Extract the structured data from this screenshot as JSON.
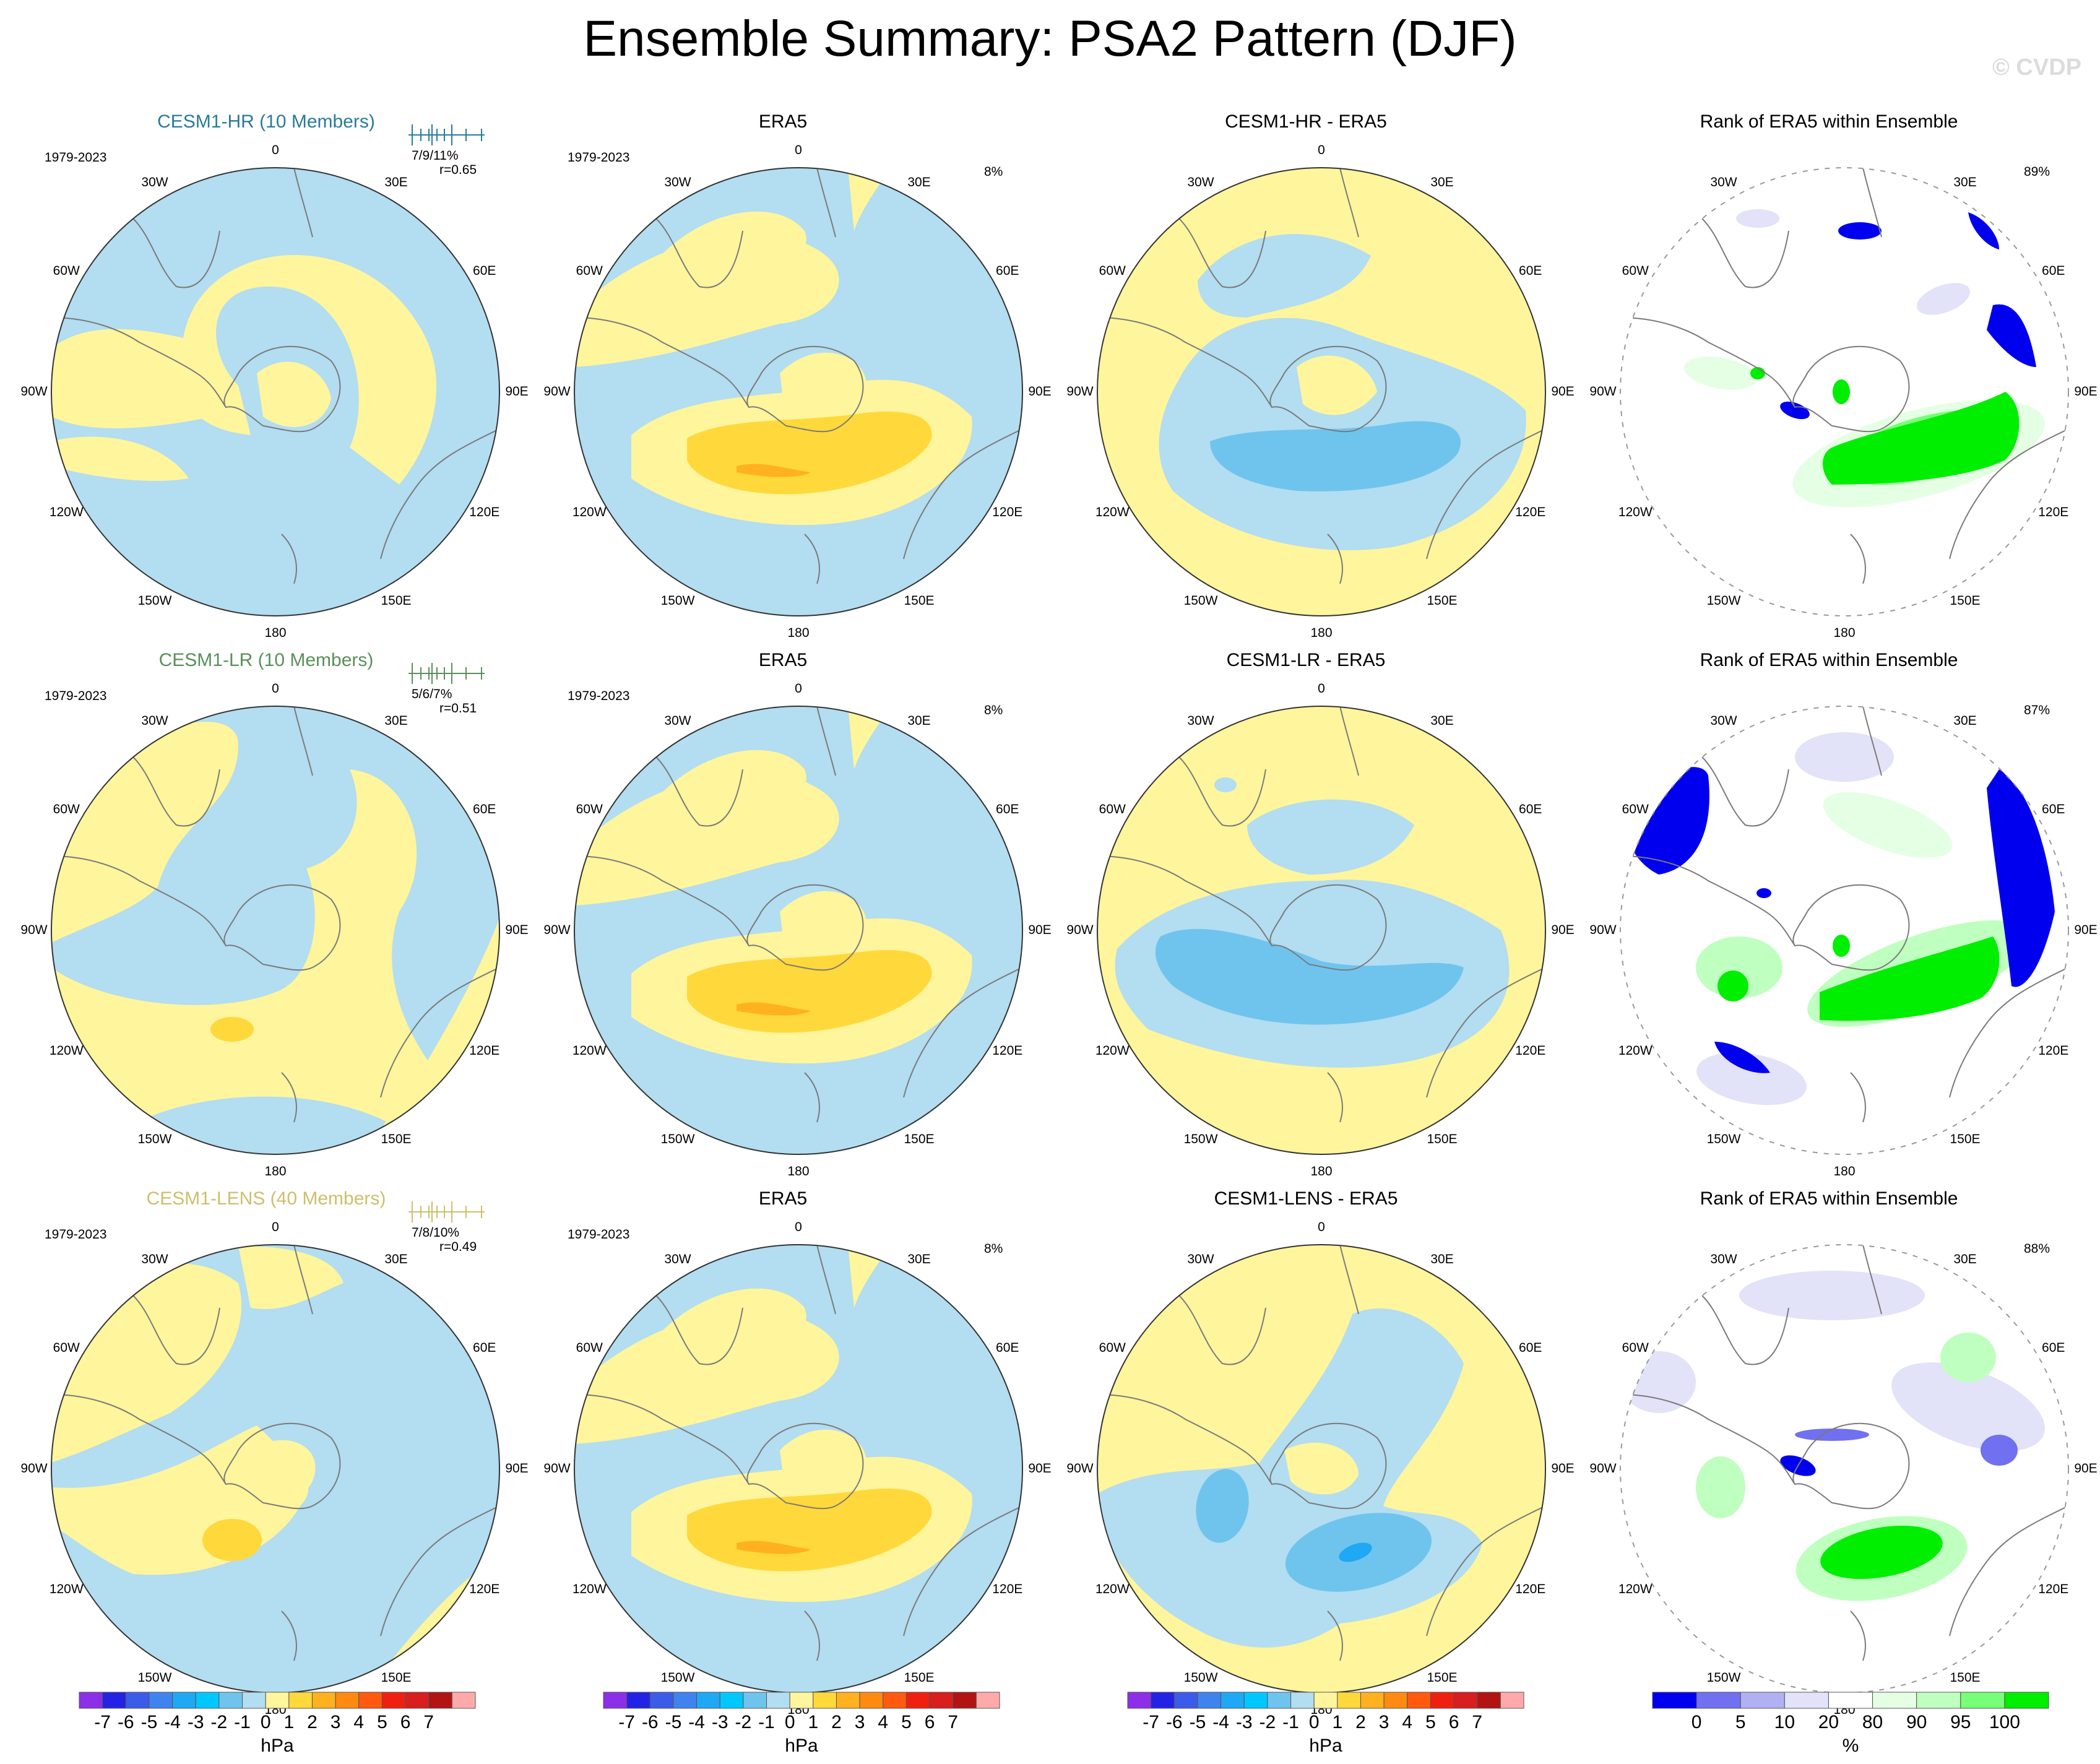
{
  "figure": {
    "title": "Ensemble Summary: PSA2 Pattern (DJF)",
    "watermark": "© CVDP"
  },
  "colors": {
    "title_rows": [
      "#2a7b9b",
      "#5a8f5a",
      "#cdbf6c"
    ],
    "hpa_scale": [
      "#8d2ee8",
      "#2323e6",
      "#3a5ce8",
      "#3f83ee",
      "#1fa8f4",
      "#00c8ff",
      "#6fc4ee",
      "#b3ddf0",
      "#fff59c",
      "#ffd83b",
      "#ffb11f",
      "#ff8a12",
      "#ff5a10",
      "#f02010",
      "#d81e1e",
      "#b21414",
      "#ffaaaa"
    ],
    "rank_scale": [
      "#0000ee",
      "#7070f0",
      "#b0b0f2",
      "#e2e2f8",
      "#ffffff",
      "#e5ffe5",
      "#bfffbf",
      "#77ff77",
      "#00ee00"
    ]
  },
  "chart_data": [
    {
      "type": "heatmap",
      "projection": "south-polar-stereographic",
      "title": "CESM1-HR (10 Members)",
      "title_style": "row",
      "period": "1979-2023",
      "stats": "7/9/11%",
      "corr": "r=0.65",
      "units": "hPa",
      "lon_labels": [
        "0",
        "30E",
        "60E",
        "90E",
        "120E",
        "150E",
        "180",
        "150W",
        "120W",
        "90W",
        "60W",
        "30W"
      ]
    },
    {
      "type": "heatmap",
      "projection": "south-polar-stereographic",
      "title": "ERA5",
      "period": "1979-2023",
      "pct": "8%",
      "units": "hPa",
      "lon_labels": [
        "0",
        "30E",
        "60E",
        "90E",
        "120E",
        "150E",
        "180",
        "150W",
        "120W",
        "90W",
        "60W",
        "30W"
      ]
    },
    {
      "type": "heatmap",
      "projection": "south-polar-stereographic",
      "title": "CESM1-HR - ERA5",
      "units": "hPa",
      "lon_labels": [
        "0",
        "30E",
        "60E",
        "90E",
        "120E",
        "150E",
        "180",
        "150W",
        "120W",
        "90W",
        "60W",
        "30W"
      ]
    },
    {
      "type": "heatmap",
      "projection": "south-polar-stereographic",
      "title": "Rank of ERA5 within Ensemble",
      "pct": "89%",
      "units": "%",
      "lon_labels": [
        "",
        "30E",
        "60E",
        "90E",
        "120E",
        "150E",
        "180",
        "150W",
        "120W",
        "90W",
        "60W",
        "30W"
      ]
    },
    {
      "type": "heatmap",
      "projection": "south-polar-stereographic",
      "title": "CESM1-LR (10 Members)",
      "title_style": "row",
      "period": "1979-2023",
      "stats": "5/6/7%",
      "corr": "r=0.51",
      "units": "hPa",
      "lon_labels": [
        "0",
        "30E",
        "60E",
        "90E",
        "120E",
        "150E",
        "180",
        "150W",
        "120W",
        "90W",
        "60W",
        "30W"
      ]
    },
    {
      "type": "heatmap",
      "projection": "south-polar-stereographic",
      "title": "ERA5",
      "period": "1979-2023",
      "pct": "8%",
      "units": "hPa",
      "lon_labels": [
        "0",
        "30E",
        "60E",
        "90E",
        "120E",
        "150E",
        "180",
        "150W",
        "120W",
        "90W",
        "60W",
        "30W"
      ]
    },
    {
      "type": "heatmap",
      "projection": "south-polar-stereographic",
      "title": "CESM1-LR - ERA5",
      "units": "hPa",
      "lon_labels": [
        "0",
        "30E",
        "60E",
        "90E",
        "120E",
        "150E",
        "180",
        "150W",
        "120W",
        "90W",
        "60W",
        "30W"
      ]
    },
    {
      "type": "heatmap",
      "projection": "south-polar-stereographic",
      "title": "Rank of ERA5 within Ensemble",
      "pct": "87%",
      "units": "%",
      "lon_labels": [
        "",
        "30E",
        "60E",
        "90E",
        "120E",
        "150E",
        "180",
        "150W",
        "120W",
        "90W",
        "60W",
        "30W"
      ]
    },
    {
      "type": "heatmap",
      "projection": "south-polar-stereographic",
      "title": "CESM1-LENS (40 Members)",
      "title_style": "row",
      "period": "1979-2023",
      "stats": "7/8/10%",
      "corr": "r=0.49",
      "units": "hPa",
      "lon_labels": [
        "0",
        "30E",
        "60E",
        "90E",
        "120E",
        "150E",
        "180",
        "150W",
        "120W",
        "90W",
        "60W",
        "30W"
      ]
    },
    {
      "type": "heatmap",
      "projection": "south-polar-stereographic",
      "title": "ERA5",
      "period": "1979-2023",
      "pct": "8%",
      "units": "hPa",
      "lon_labels": [
        "0",
        "30E",
        "60E",
        "90E",
        "120E",
        "150E",
        "180",
        "150W",
        "120W",
        "90W",
        "60W",
        "30W"
      ]
    },
    {
      "type": "heatmap",
      "projection": "south-polar-stereographic",
      "title": "CESM1-LENS - ERA5",
      "units": "hPa",
      "lon_labels": [
        "0",
        "30E",
        "60E",
        "90E",
        "120E",
        "150E",
        "180",
        "150W",
        "120W",
        "90W",
        "60W",
        "30W"
      ]
    },
    {
      "type": "heatmap",
      "projection": "south-polar-stereographic",
      "title": "Rank of ERA5 within Ensemble",
      "pct": "88%",
      "units": "%",
      "lon_labels": [
        "",
        "30E",
        "60E",
        "90E",
        "120E",
        "150E",
        "180",
        "150W",
        "120W",
        "90W",
        "60W",
        "30W"
      ]
    }
  ],
  "colorbars": [
    {
      "label": "hPa",
      "ticks": [
        "-7",
        "-6",
        "-5",
        "-4",
        "-3",
        "-2",
        "-1",
        "0",
        "1",
        "2",
        "3",
        "4",
        "5",
        "6",
        "7"
      ]
    },
    {
      "label": "hPa",
      "ticks": [
        "-7",
        "-6",
        "-5",
        "-4",
        "-3",
        "-2",
        "-1",
        "0",
        "1",
        "2",
        "3",
        "4",
        "5",
        "6",
        "7"
      ]
    },
    {
      "label": "hPa",
      "ticks": [
        "-7",
        "-6",
        "-5",
        "-4",
        "-3",
        "-2",
        "-1",
        "0",
        "1",
        "2",
        "3",
        "4",
        "5",
        "6",
        "7"
      ]
    },
    {
      "label": "%",
      "ticks": [
        "0",
        "5",
        "10",
        "20",
        "80",
        "90",
        "95",
        "100"
      ]
    }
  ]
}
